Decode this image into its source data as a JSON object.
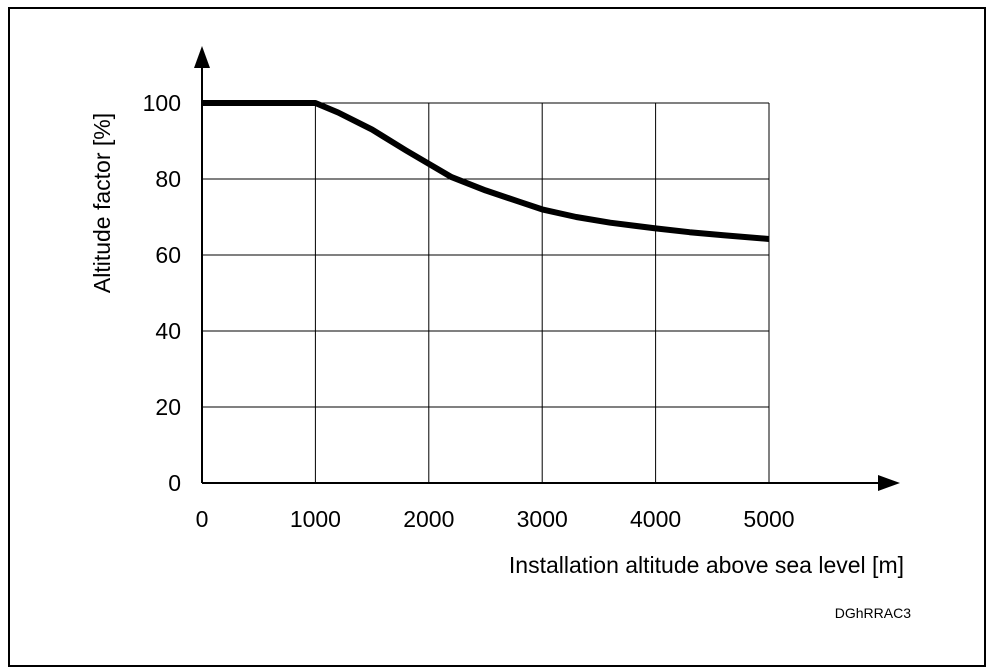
{
  "chart_data": {
    "type": "line",
    "xlabel": "Installation altitude above sea level [m]",
    "ylabel": "Altitude factor [%]",
    "xlim": [
      0,
      5000
    ],
    "ylim": [
      0,
      100
    ],
    "x_ticks": [
      "0",
      "1000",
      "2000",
      "3000",
      "4000",
      "5000"
    ],
    "y_ticks": [
      "0",
      "20",
      "40",
      "60",
      "80",
      "100"
    ],
    "grid": true,
    "series": [
      {
        "color": "#000000",
        "x": [
          0,
          1000,
          1200,
          1500,
          1800,
          2000,
          2200,
          2500,
          2800,
          3000,
          3300,
          3600,
          4000,
          4300,
          4600,
          5000
        ],
        "y": [
          100,
          100,
          97.5,
          93,
          87.5,
          84,
          80.5,
          77,
          74,
          72,
          70,
          68.5,
          67,
          66,
          65.2,
          64.2
        ]
      }
    ],
    "reference_code": "DGhRRAC3"
  }
}
